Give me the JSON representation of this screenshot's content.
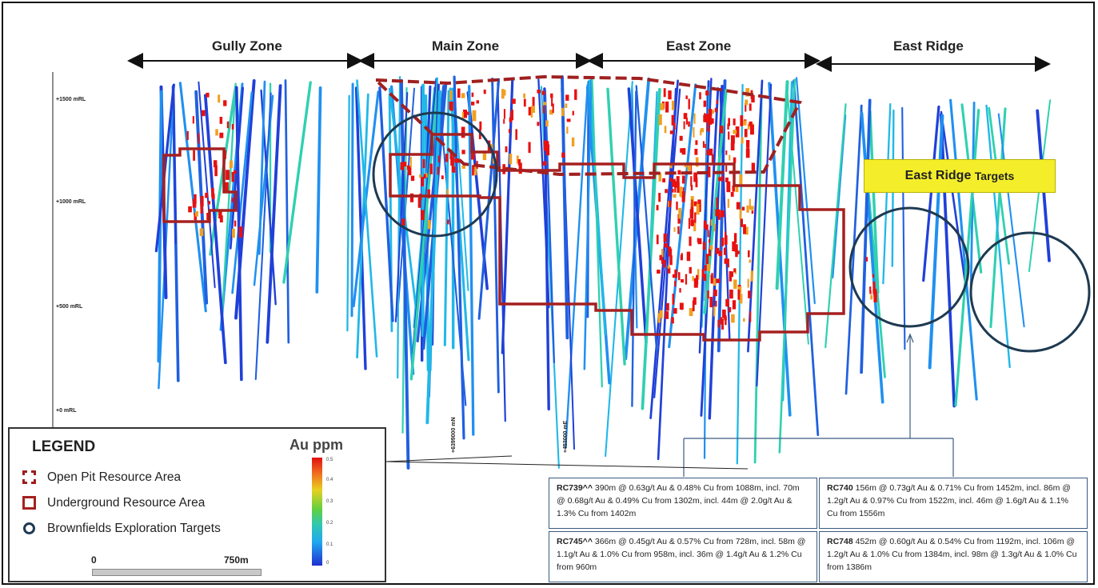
{
  "zones": [
    {
      "label": "Gully Zone"
    },
    {
      "label": "Main Zone"
    },
    {
      "label": "East Zone"
    },
    {
      "label": "East Ridge"
    }
  ],
  "mrl_labels": [
    "+1500 mRL",
    "+1000 mRL",
    "+500 mRL",
    "+0 mRL"
  ],
  "grid_labels": {
    "north": "+6399000 mN",
    "east": "+453000 mE"
  },
  "targets_banner": {
    "bold": "East Ridge",
    "rest": "Targets",
    "color": "#f4ee2a"
  },
  "legend": {
    "title": "LEGEND",
    "items": [
      {
        "label": "Open Pit Resource Area",
        "icon": "dashed-square-icon"
      },
      {
        "label": "Underground Resource Area",
        "icon": "square-outline-icon"
      },
      {
        "label": "Brownfields Exploration Targets",
        "icon": "circle-outline-icon"
      }
    ],
    "colorbar_title": "Au ppm",
    "colorbar_ticks": [
      "0.5",
      "0.4",
      "0.3",
      "0.2",
      "0.1",
      "0"
    ],
    "scale": {
      "start": "0",
      "end": "750m"
    }
  },
  "callouts": [
    {
      "hole": "RC739^^",
      "text": " 390m @ 0.63g/t Au & 0.48% Cu from 1088m, incl. 70m @ 0.68g/t Au & 0.49% Cu from 1302m, incl. 44m @ 2.0g/t Au & 1.3% Cu from 1402m"
    },
    {
      "hole": "RC740",
      "text": " 156m @ 0.73g/t Au & 0.71% Cu from 1452m, incl. 86m @ 1.2g/t Au & 0.97% Cu from 1522m, incl. 46m @ 1.6g/t Au & 1.1% Cu from 1556m"
    },
    {
      "hole": "RC745^^",
      "text": " 366m @ 0.45g/t Au & 0.57% Cu from 728m, incl. 58m @ 1.1g/t Au & 1.0% Cu from 958m, incl. 36m @ 1.4g/t Au & 1.2% Cu from 960m"
    },
    {
      "hole": "RC748",
      "text": " 452m @ 0.60g/t Au & 0.54% Cu from 1192m, incl. 106m @ 1.2g/t Au & 1.0% Cu from 1384m, incl. 98m @ 1.3g/t Au & 1.0% Cu from 1386m"
    }
  ],
  "colors": {
    "resource_outline": "#a62020",
    "target_circle": "#1e3a52",
    "hole_low": "#2040d8",
    "hole_high": "#e81010"
  }
}
